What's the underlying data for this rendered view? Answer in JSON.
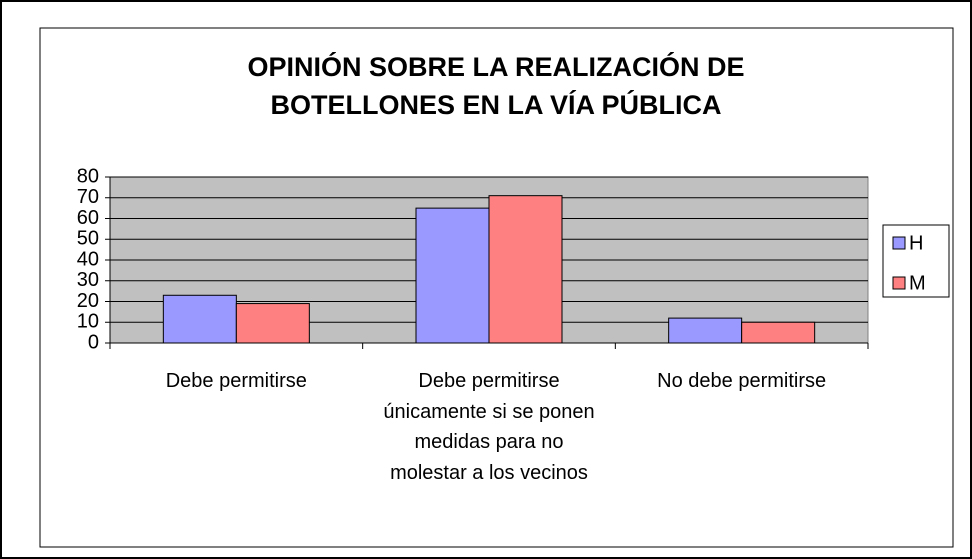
{
  "chart_data": {
    "type": "bar",
    "title": "OPINIÓN SOBRE LA REALIZACIÓN DE BOTELLONES EN LA VÍA PÚBLICA",
    "categories": [
      "Debe permitirse",
      "Debe permitirse únicamente si se ponen medidas para no molestar a los vecinos",
      "No debe permitirse"
    ],
    "series": [
      {
        "name": "H",
        "color": "#9999ff",
        "values": [
          23,
          65,
          12
        ]
      },
      {
        "name": "M",
        "color": "#ff8080",
        "values": [
          19,
          71,
          10
        ]
      }
    ],
    "ylim": [
      0,
      80
    ],
    "yticks": [
      0,
      10,
      20,
      30,
      40,
      50,
      60,
      70,
      80
    ],
    "grid": true,
    "legend": "right"
  }
}
